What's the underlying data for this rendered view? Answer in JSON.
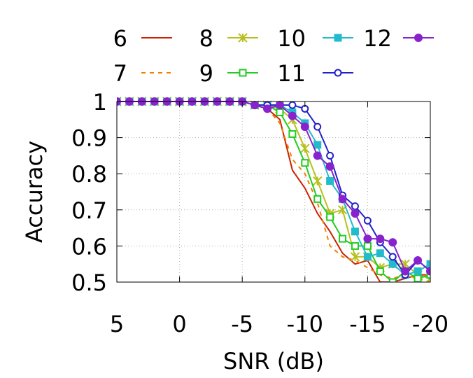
{
  "chart_data": {
    "type": "line",
    "xlabel": "SNR (dB)",
    "ylabel": "Accuracy",
    "xlim": [
      5,
      -20
    ],
    "ylim": [
      0.5,
      1.0
    ],
    "x_ticks": [
      "5",
      "0",
      "-5",
      "-10",
      "-15",
      "-20"
    ],
    "y_ticks": [
      "0.5",
      "0.6",
      "0.7",
      "0.8",
      "0.9",
      "1"
    ],
    "grid": true,
    "legend_position": "top",
    "x": [
      5,
      4,
      3,
      2,
      1,
      0,
      -1,
      -2,
      -3,
      -4,
      -5,
      -6,
      -7,
      -8,
      -9,
      -10,
      -11,
      -12,
      -13,
      -14,
      -15,
      -16,
      -17,
      -18,
      -19,
      -20
    ],
    "series": [
      {
        "name": "6",
        "color": "#cc2200",
        "dash": "",
        "marker": "none",
        "values": [
          1,
          1,
          1,
          1,
          1,
          1,
          1,
          1,
          1,
          1,
          1,
          0.99,
          0.98,
          0.95,
          0.81,
          0.76,
          0.69,
          0.64,
          0.58,
          0.55,
          0.56,
          0.5,
          0.5,
          0.51,
          0.52,
          0.52
        ]
      },
      {
        "name": "7",
        "color": "#f08000",
        "dash": "6,6",
        "marker": "none",
        "values": [
          1,
          1,
          1,
          1,
          1,
          1,
          1,
          1,
          1,
          1,
          1,
          0.99,
          0.98,
          0.94,
          0.84,
          0.8,
          0.72,
          0.6,
          0.57,
          0.56,
          0.54,
          0.52,
          0.51,
          0.52,
          0.51,
          0.5
        ]
      },
      {
        "name": "8",
        "color": "#b8c020",
        "dash": "",
        "marker": "x",
        "values": [
          1,
          1,
          1,
          1,
          1,
          1,
          1,
          1,
          1,
          1,
          1,
          0.99,
          0.99,
          0.98,
          0.95,
          0.87,
          0.78,
          0.69,
          0.7,
          0.57,
          0.57,
          0.54,
          0.55,
          0.55,
          0.52,
          0.51
        ]
      },
      {
        "name": "9",
        "color": "#22cc22",
        "dash": "",
        "marker": "sq-open",
        "values": [
          1,
          1,
          1,
          1,
          1,
          1,
          1,
          1,
          1,
          1,
          1,
          0.99,
          0.99,
          0.97,
          0.91,
          0.83,
          0.73,
          0.68,
          0.62,
          0.6,
          0.6,
          0.53,
          0.5,
          0.53,
          0.51,
          0.52
        ]
      },
      {
        "name": "10",
        "color": "#22bbcc",
        "dash": "",
        "marker": "sq-fill",
        "values": [
          1,
          1,
          1,
          1,
          1,
          1,
          1,
          1,
          1,
          1,
          1,
          0.99,
          0.99,
          0.99,
          0.97,
          0.94,
          0.88,
          0.78,
          0.73,
          0.64,
          0.57,
          0.58,
          0.55,
          0.52,
          0.53,
          0.55
        ]
      },
      {
        "name": "11",
        "color": "#2222cc",
        "dash": "",
        "marker": "circ-open",
        "values": [
          1,
          1,
          1,
          1,
          1,
          1,
          1,
          1,
          1,
          1,
          1,
          0.99,
          0.99,
          0.99,
          0.99,
          0.98,
          0.93,
          0.85,
          0.74,
          0.71,
          0.67,
          0.61,
          0.57,
          0.52,
          0.56,
          0.53
        ]
      },
      {
        "name": "12",
        "color": "#8822cc",
        "dash": "",
        "marker": "circ-fill",
        "values": [
          1,
          1,
          1,
          1,
          1,
          1,
          1,
          1,
          1,
          1,
          1,
          0.99,
          0.98,
          0.99,
          0.96,
          0.93,
          0.85,
          0.82,
          0.73,
          0.69,
          0.62,
          0.62,
          0.61,
          0.53,
          0.56,
          0.53
        ]
      }
    ]
  }
}
